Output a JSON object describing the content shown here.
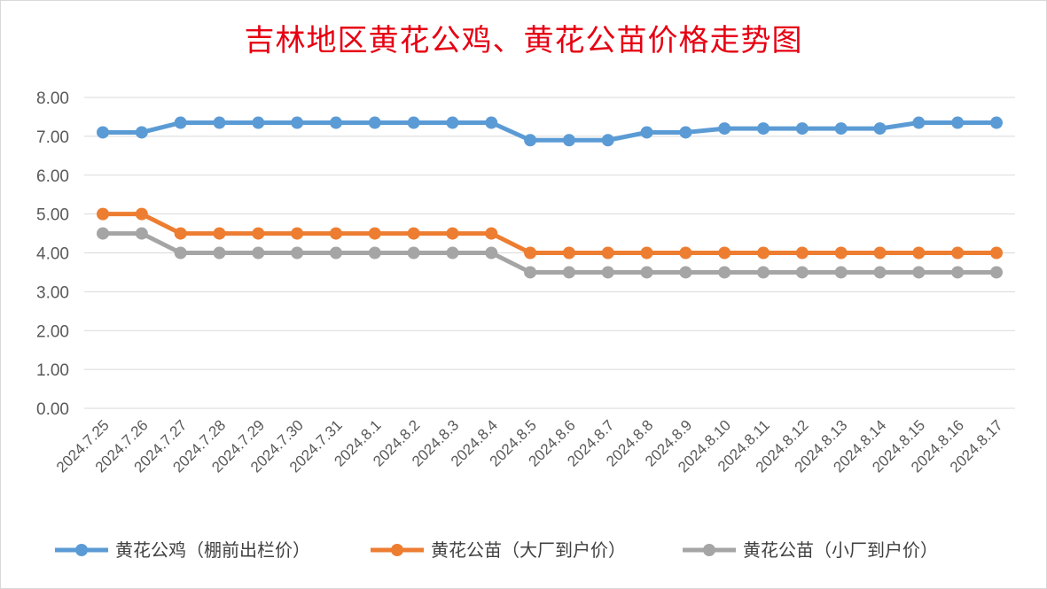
{
  "chart_data": {
    "type": "line",
    "title": "吉林地区黄花公鸡、黄花公苗价格走势图",
    "xlabel": "",
    "ylabel": "",
    "ylim": [
      0,
      8
    ],
    "y_ticks": [
      "0.00",
      "1.00",
      "2.00",
      "3.00",
      "4.00",
      "5.00",
      "6.00",
      "7.00",
      "8.00"
    ],
    "grid": true,
    "legend_position": "bottom",
    "categories": [
      "2024.7.25",
      "2024.7.26",
      "2024.7.27",
      "2024.7.28",
      "2024.7.29",
      "2024.7.30",
      "2024.7.31",
      "2024.8.1",
      "2024.8.2",
      "2024.8.3",
      "2024.8.4",
      "2024.8.5",
      "2024.8.6",
      "2024.8.7",
      "2024.8.8",
      "2024.8.9",
      "2024.8.10",
      "2024.8.11",
      "2024.8.12",
      "2024.8.13",
      "2024.8.14",
      "2024.8.15",
      "2024.8.16",
      "2024.8.17"
    ],
    "series": [
      {
        "name": "黄花公鸡（棚前出栏价）",
        "color": "#5b9bd5",
        "values": [
          7.1,
          7.1,
          7.35,
          7.35,
          7.35,
          7.35,
          7.35,
          7.35,
          7.35,
          7.35,
          7.35,
          6.9,
          6.9,
          6.9,
          7.1,
          7.1,
          7.2,
          7.2,
          7.2,
          7.2,
          7.2,
          7.35,
          7.35,
          7.35
        ]
      },
      {
        "name": "黄花公苗（大厂到户价）",
        "color": "#ed7d31",
        "values": [
          5.0,
          5.0,
          4.5,
          4.5,
          4.5,
          4.5,
          4.5,
          4.5,
          4.5,
          4.5,
          4.5,
          4.0,
          4.0,
          4.0,
          4.0,
          4.0,
          4.0,
          4.0,
          4.0,
          4.0,
          4.0,
          4.0,
          4.0,
          4.0
        ]
      },
      {
        "name": "黄花公苗（小厂到户价）",
        "color": "#a5a5a5",
        "values": [
          4.5,
          4.5,
          4.0,
          4.0,
          4.0,
          4.0,
          4.0,
          4.0,
          4.0,
          4.0,
          4.0,
          3.5,
          3.5,
          3.5,
          3.5,
          3.5,
          3.5,
          3.5,
          3.5,
          3.5,
          3.5,
          3.5,
          3.5,
          3.5
        ]
      }
    ]
  }
}
